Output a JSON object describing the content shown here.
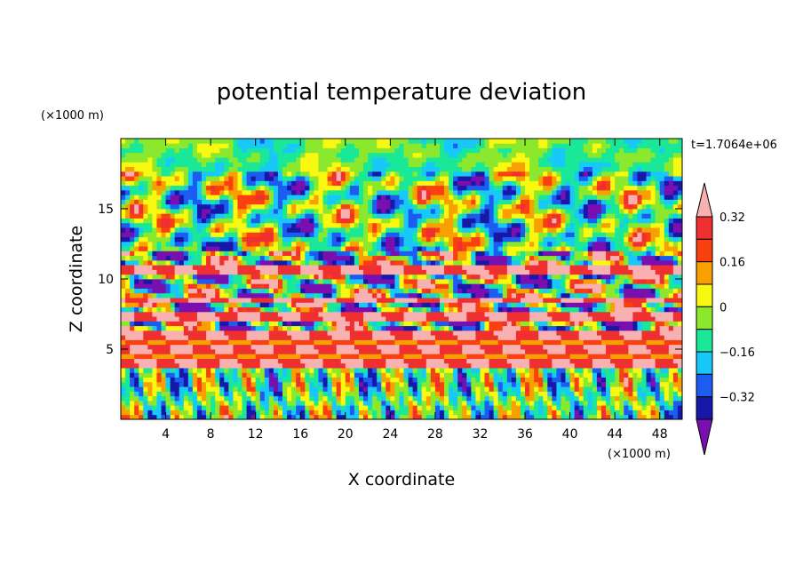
{
  "chart_data": {
    "type": "heatmap",
    "title": "potential temperature deviation",
    "xlabel": "X coordinate",
    "ylabel": "Z coordinate",
    "x_unit": "(×1000 m)",
    "y_unit": "(×1000 m)",
    "time_label": "t=1.7064e+06",
    "xlim": [
      0,
      50
    ],
    "ylim": [
      0,
      20
    ],
    "x_ticks": [
      4,
      8,
      12,
      16,
      20,
      24,
      28,
      32,
      36,
      40,
      44,
      48
    ],
    "x_tick_labels": [
      "4",
      "8",
      "12",
      "16",
      "20",
      "24",
      "28",
      "32",
      "36",
      "40",
      "44",
      "48"
    ],
    "y_ticks": [
      5,
      10,
      15
    ],
    "y_tick_labels": [
      "5",
      "10",
      "15"
    ],
    "colorbar": {
      "levels": [
        -0.4,
        -0.32,
        -0.24,
        -0.16,
        -0.08,
        0,
        0.08,
        0.16,
        0.24,
        0.32,
        0.4
      ],
      "labeled_levels": [
        0.32,
        0.16,
        0,
        -0.16,
        -0.32
      ],
      "labels": [
        "0.32",
        "0.16",
        "0",
        "−0.16",
        "−0.32"
      ],
      "colors_low_to_high": [
        "#7a0fb0",
        "#1818a8",
        "#1c5cf0",
        "#18c8f8",
        "#18e898",
        "#8ce82c",
        "#f8f810",
        "#f8a000",
        "#f84010",
        "#f03030",
        "#f8b0b0"
      ],
      "extends": "both"
    },
    "bands": [
      {
        "z_range": [
          0,
          3.5
        ],
        "description_value": "mixed"
      },
      {
        "z_range": [
          3.8,
          4.3
        ],
        "value": 0.4
      },
      {
        "z_range": [
          4.3,
          4.8
        ],
        "value": 0.24
      },
      {
        "z_range": [
          4.8,
          5.2
        ],
        "value": 0.4
      },
      {
        "z_range": [
          5.2,
          5.8
        ],
        "value": 0.24
      },
      {
        "z_range": [
          5.8,
          6.4
        ],
        "value": 0.4
      },
      {
        "z_range": [
          7.0,
          7.8
        ],
        "value": 0.4
      },
      {
        "z_range": [
          8.4,
          8.8
        ],
        "value": 0.4
      },
      {
        "z_range": [
          10.4,
          11.0
        ],
        "value": 0.4
      }
    ]
  }
}
